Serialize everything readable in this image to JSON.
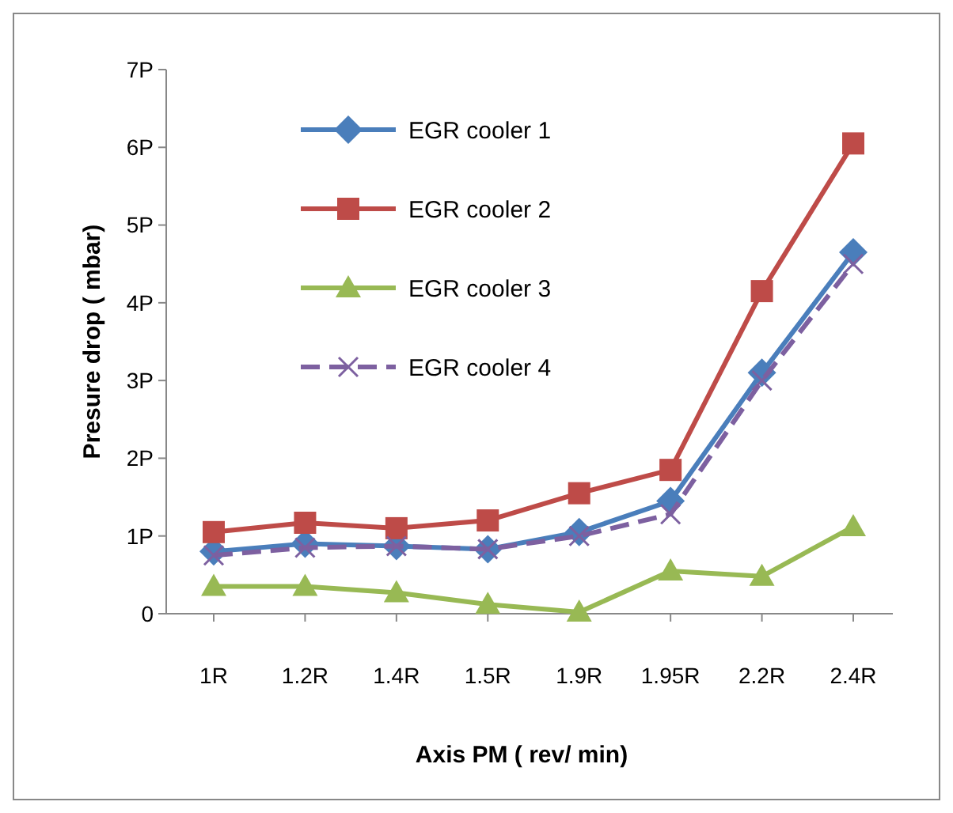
{
  "chart_data": {
    "type": "line",
    "xlabel": "Axis PM ( rev/ min)",
    "ylabel": "Presure drop ( mbar)",
    "categories": [
      "1R",
      "1.2R",
      "1.4R",
      "1.5R",
      "1.9R",
      "1.95R",
      "2.2R",
      "2.4R"
    ],
    "series": [
      {
        "name": "EGR cooler 1",
        "color": "#4a7ebb",
        "marker": "diamond",
        "line_style": "solid",
        "values": [
          0.8,
          0.9,
          0.87,
          0.83,
          1.05,
          1.45,
          3.1,
          4.65
        ]
      },
      {
        "name": "EGR cooler 2",
        "color": "#be4b48",
        "marker": "square",
        "line_style": "solid",
        "values": [
          1.05,
          1.17,
          1.1,
          1.2,
          1.55,
          1.85,
          4.15,
          6.05
        ]
      },
      {
        "name": "EGR cooler 3",
        "color": "#98b954",
        "marker": "triangle",
        "line_style": "solid",
        "values": [
          0.35,
          0.35,
          0.27,
          0.12,
          0.02,
          0.55,
          0.48,
          1.12
        ]
      },
      {
        "name": "EGR cooler 4",
        "color": "#7d60a0",
        "marker": "cross",
        "line_style": "dashed",
        "values": [
          0.75,
          0.85,
          0.87,
          0.83,
          1.0,
          1.28,
          3.0,
          4.5
        ]
      }
    ],
    "ylim": [
      0,
      7
    ],
    "yticks": [
      0,
      {
        "value": 1,
        "label": "1P"
      },
      {
        "value": 2,
        "label": "2P"
      },
      {
        "value": 3,
        "label": "3P"
      },
      {
        "value": 4,
        "label": "4P"
      },
      {
        "value": 5,
        "label": "5P"
      },
      {
        "value": 6,
        "label": "6P"
      },
      {
        "value": 7,
        "label": "7P"
      }
    ],
    "grid": false,
    "legend": "top left"
  }
}
